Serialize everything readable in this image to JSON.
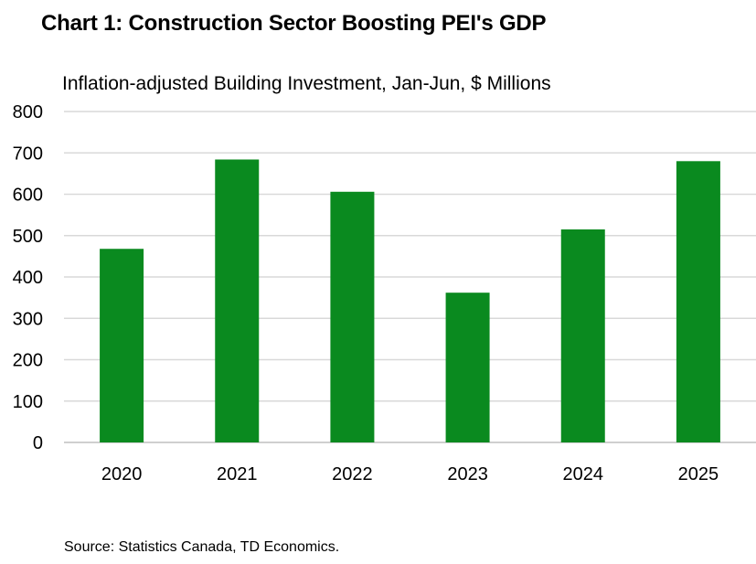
{
  "title": "Chart 1: Construction Sector Boosting PEI's GDP",
  "subtitle": "Inflation-adjusted Building Investment, Jan-Jun, $ Millions",
  "source": "Source: Statistics Canada, TD Economics.",
  "colors": {
    "bar": "#0a8a1f",
    "grid": "#d9d9d9",
    "axis": "#bfbfbf"
  },
  "chart_data": {
    "type": "bar",
    "categories": [
      "2020",
      "2021",
      "2022",
      "2023",
      "2024",
      "2025"
    ],
    "values": [
      468,
      684,
      606,
      362,
      515,
      680
    ],
    "ylim": [
      0,
      800
    ],
    "yticks": [
      0,
      100,
      200,
      300,
      400,
      500,
      600,
      700,
      800
    ],
    "grid": true
  }
}
